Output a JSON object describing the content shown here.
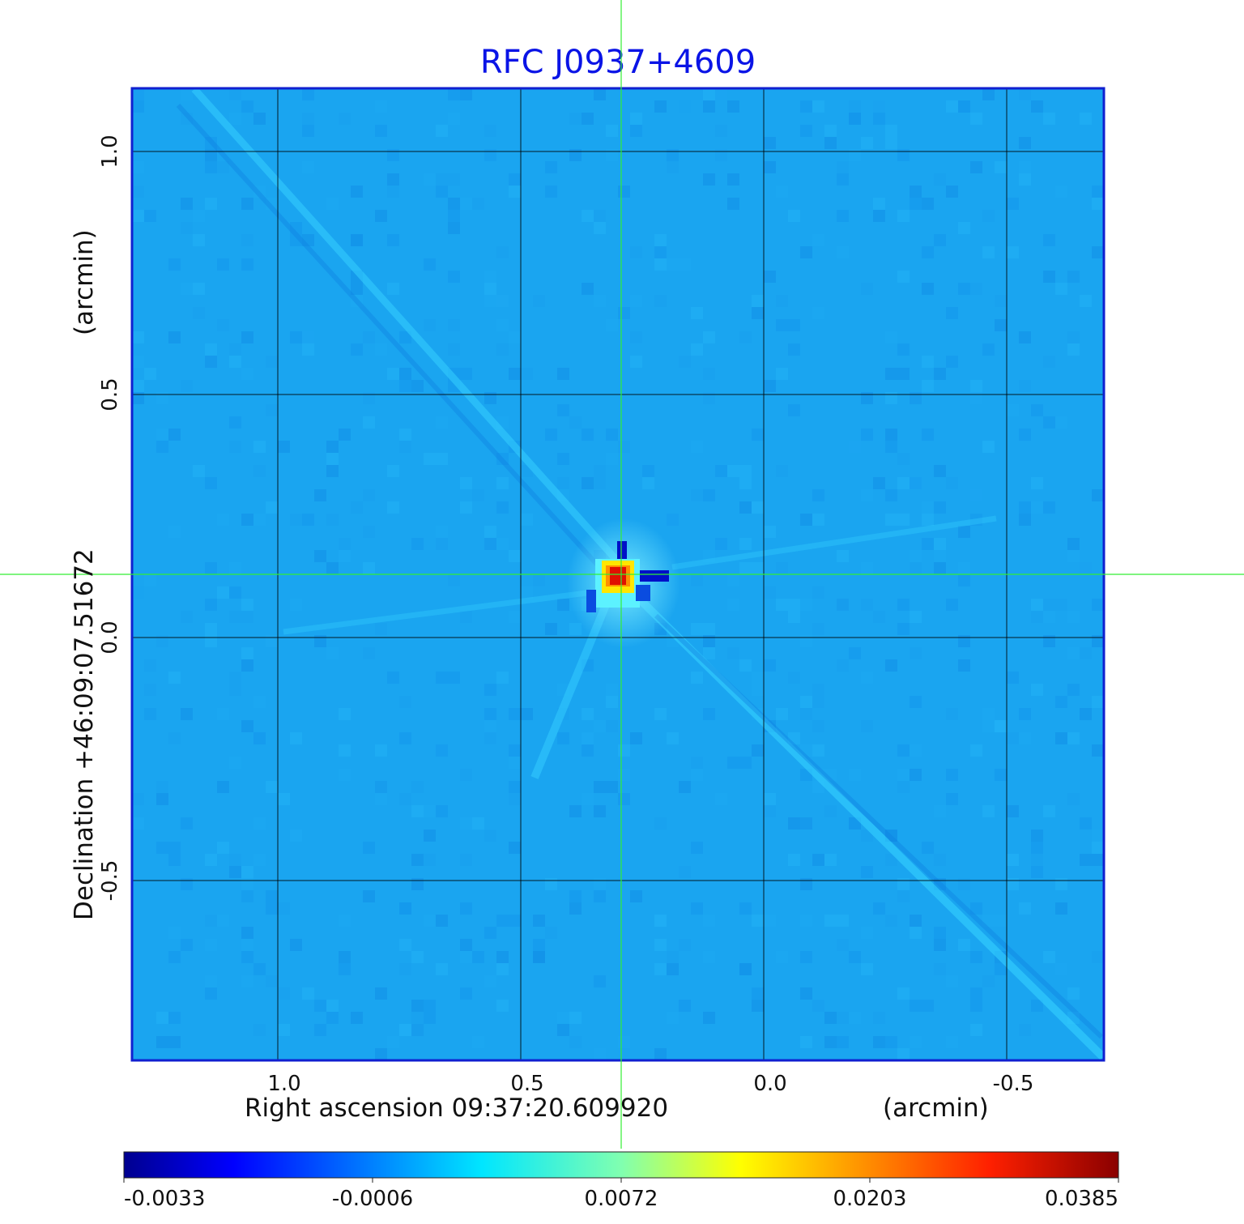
{
  "title": "RFC J0937+4609",
  "x_axis": {
    "label": "Right ascension  09:37:20.609920",
    "unit": "(arcmin)",
    "ticks": [
      {
        "value": 1.0,
        "label": "1.0"
      },
      {
        "value": 0.5,
        "label": "0.5"
      },
      {
        "value": 0.0,
        "label": "0.0"
      },
      {
        "value": -0.5,
        "label": "-0.5"
      }
    ],
    "range": [
      1.3,
      -0.7
    ]
  },
  "y_axis": {
    "label": "Declination  +46:09:07.51672",
    "unit": "(arcmin)",
    "ticks": [
      {
        "value": 1.0,
        "label": "1.0"
      },
      {
        "value": 0.5,
        "label": "0.5"
      },
      {
        "value": 0.0,
        "label": "0.0"
      },
      {
        "value": -0.5,
        "label": "-0.5"
      }
    ],
    "range": [
      -0.87,
      1.13
    ]
  },
  "source": {
    "ra_offset_arcmin": 0.3,
    "dec_offset_arcmin": 0.13
  },
  "colorbar": {
    "colormap": "jet",
    "tick_labels": [
      "-0.0033",
      "-0.0006",
      "0.0072",
      "0.0203",
      "0.0385"
    ]
  },
  "colors": {
    "title": "#0a14e6",
    "frame": "#1020d0",
    "crosshair": "#33ee33",
    "grid": "#000000",
    "background_field": "#1aa5f0"
  },
  "grid": true
}
